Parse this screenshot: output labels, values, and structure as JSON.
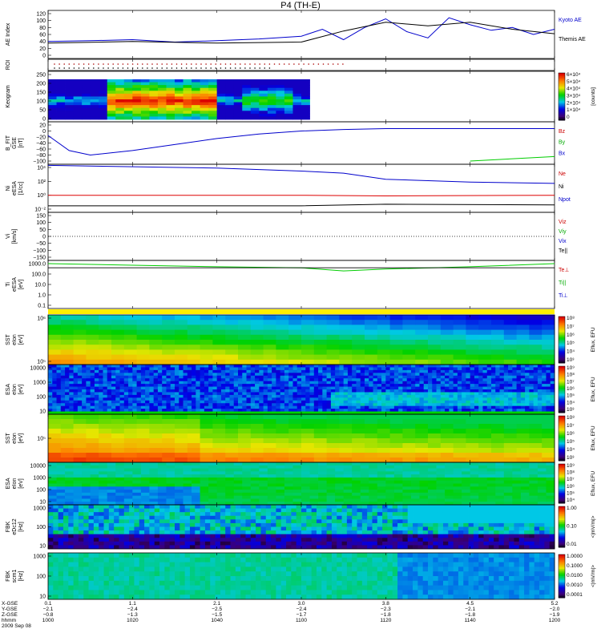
{
  "title": "P4 (TH-E)",
  "panels": [
    {
      "id": "ae",
      "ylabel": [
        "AE Index"
      ],
      "yticks": [
        "120",
        "100",
        "80",
        "60",
        "40",
        "20",
        "0"
      ],
      "right_labels": [
        {
          "text": "Kyoto AE",
          "color": "#0000cc"
        },
        {
          "text": "Themis AE",
          "color": "#000000"
        }
      ]
    },
    {
      "id": "roi",
      "ylabel": [
        "ROI"
      ],
      "yticks": [],
      "right_labels": []
    },
    {
      "id": "keogram",
      "ylabel": [
        "Keogram"
      ],
      "yticks": [
        "250",
        "200",
        "150",
        "100",
        "50",
        "0"
      ],
      "colorbar": {
        "ticks": [
          "6×10⁴",
          "5×10⁴",
          "4×10⁴",
          "3×10⁴",
          "2×10⁴",
          "1×10⁴",
          "0"
        ],
        "label": "[counts]"
      }
    },
    {
      "id": "bfield",
      "ylabel": [
        "B_FIT",
        "GSE",
        "[nT]"
      ],
      "yticks": [
        "20",
        "0",
        "−20",
        "−40",
        "−60",
        "−80",
        "−100"
      ],
      "right_labels": [
        {
          "text": "Bz",
          "color": "#cc0000"
        },
        {
          "text": "By",
          "color": "#00aa00"
        },
        {
          "text": "Bx",
          "color": "#0000cc"
        }
      ]
    },
    {
      "id": "density",
      "ylabel": [
        "Ni",
        "eESA",
        "[1/cc]"
      ],
      "yticks": [
        "10⁴",
        "10²",
        "10⁰",
        "10⁻²"
      ],
      "right_labels": [
        {
          "text": "Ne",
          "color": "#cc0000"
        },
        {
          "text": "Ni",
          "color": "#000000"
        },
        {
          "text": "Npot",
          "color": "#0000cc"
        }
      ]
    },
    {
      "id": "velocity",
      "ylabel": [
        "Vi",
        "[km/s]"
      ],
      "yticks": [
        "150",
        "100",
        "50",
        "0",
        "−50",
        "−100",
        "−150"
      ],
      "right_labels": [
        {
          "text": "Viz",
          "color": "#cc0000"
        },
        {
          "text": "Viy",
          "color": "#00aa00"
        },
        {
          "text": "Vix",
          "color": "#0000cc"
        },
        {
          "text": "Te||",
          "color": "#000000"
        }
      ]
    },
    {
      "id": "temperature",
      "ylabel": [
        "Ti",
        "eESA",
        "[eV]"
      ],
      "yticks": [
        "1000.0",
        "100.0",
        "10.0",
        "1.0",
        "0.1"
      ],
      "right_labels": [
        {
          "text": "Te⊥",
          "color": "#cc0000"
        },
        {
          "text": "Ti||",
          "color": "#00aa00"
        },
        {
          "text": "Ti⊥",
          "color": "#0000cc"
        }
      ]
    },
    {
      "id": "sst_e",
      "ylabel": [
        "SST",
        "eIon",
        "[eV]"
      ],
      "yticks": [
        "10⁶",
        "10⁵"
      ],
      "colorbar": {
        "ticks": [
          "10⁸",
          "10⁷",
          "10⁶",
          "10⁵",
          "10⁴",
          "10³"
        ],
        "label": "Eflux, EFU"
      }
    },
    {
      "id": "esa_e",
      "ylabel": [
        "ESA",
        "eIon",
        "[eV]"
      ],
      "yticks": [
        "10000",
        "1000",
        "100",
        "10"
      ],
      "colorbar": {
        "ticks": [
          "10⁹",
          "10⁸",
          "10⁷",
          "10⁶",
          "10⁵",
          "10⁴",
          "10³"
        ],
        "label": "Eflux, EFU"
      }
    },
    {
      "id": "sst_i",
      "ylabel": [
        "SST",
        "eIon",
        "[eV]"
      ],
      "yticks": [
        "10⁵"
      ],
      "colorbar": {
        "ticks": [
          "10⁸",
          "10⁷",
          "10⁶",
          "10⁵",
          "10⁴",
          "10³"
        ],
        "label": "Eflux, EFU"
      }
    },
    {
      "id": "esa_i",
      "ylabel": [
        "ESA",
        "eIon",
        "[eV]"
      ],
      "yticks": [
        "10000",
        "1000",
        "100",
        "10"
      ],
      "colorbar": {
        "ticks": [
          "10⁹",
          "10⁸",
          "10⁷",
          "10⁶",
          "10⁵",
          "10⁴"
        ],
        "label": "Eflux, EFU"
      }
    },
    {
      "id": "fbk_e12",
      "ylabel": [
        "FBK",
        "eDc12",
        "[Hz]"
      ],
      "yticks": [
        "1000",
        "100",
        "10"
      ],
      "colorbar": {
        "ticks": [
          "1.00",
          "0.10",
          "0.01"
        ],
        "label": "<|mV/m|>"
      }
    },
    {
      "id": "fbk_scm",
      "ylabel": [
        "FBK",
        "scm1",
        "[Hz]"
      ],
      "yticks": [
        "1000",
        "100",
        "10"
      ],
      "colorbar": {
        "ticks": [
          "1.0000",
          "0.1000",
          "0.0100",
          "0.0010",
          "0.0001"
        ],
        "label": "<|mV/m|>"
      }
    }
  ],
  "xaxis": {
    "row_labels": [
      "X-GSE",
      "Y-GSE",
      "Z-GSE",
      "hhmm",
      "2009 Sep 08"
    ],
    "columns": [
      [
        "0.1",
        "−2.1",
        "−0.8",
        "1000"
      ],
      [
        "1.1",
        "−2.4",
        "−1.3",
        "1020"
      ],
      [
        "2.1",
        "−2.5",
        "−1.5",
        "1040"
      ],
      [
        "3.0",
        "−2.4",
        "−1.7",
        "1100"
      ],
      [
        "3.8",
        "−2.3",
        "−1.8",
        "1120"
      ],
      [
        "4.5",
        "−2.1",
        "−1.8",
        "1140"
      ],
      [
        "5.2",
        "−2.0",
        "−1.9",
        "1200"
      ]
    ]
  },
  "colors": {
    "blue": "#0000cc",
    "green": "#00cc00",
    "red": "#dd0000",
    "black": "#000000"
  },
  "chart_data": [
    {
      "type": "line",
      "panel": "AE Index",
      "x_units": "hhmm",
      "xlim": [
        "1000",
        "1200"
      ],
      "ylim": [
        0,
        120
      ],
      "series": [
        {
          "name": "Kyoto AE",
          "x": [
            "1000",
            "1010",
            "1020",
            "1030",
            "1040",
            "1050",
            "1100",
            "1105",
            "1110",
            "1115",
            "1120",
            "1125",
            "1130",
            "1135",
            "1140",
            "1145",
            "1150",
            "1155",
            "1200"
          ],
          "values": [
            40,
            42,
            45,
            38,
            42,
            47,
            55,
            75,
            45,
            80,
            105,
            68,
            50,
            108,
            88,
            72,
            80,
            60,
            75
          ]
        },
        {
          "name": "Themis AE",
          "x": [
            "1000",
            "1020",
            "1040",
            "1100",
            "1110",
            "1120",
            "1130",
            "1140",
            "1150",
            "1200"
          ],
          "values": [
            35,
            40,
            35,
            38,
            70,
            95,
            85,
            95,
            75,
            62
          ]
        }
      ]
    },
    {
      "type": "line",
      "panel": "B_FIT GSE [nT]",
      "x_units": "hhmm",
      "ylim": [
        -100,
        20
      ],
      "series": [
        {
          "name": "Bx",
          "x": [
            "1000",
            "1005",
            "1010",
            "1020",
            "1030",
            "1040",
            "1050",
            "1100",
            "1110",
            "1120",
            "1140",
            "1200"
          ],
          "values": [
            -15,
            -65,
            -80,
            -65,
            -45,
            -25,
            -10,
            0,
            5,
            8,
            8,
            8
          ]
        },
        {
          "name": "By",
          "x": [
            "1140",
            "1200"
          ],
          "values": [
            -100,
            -85
          ]
        }
      ]
    },
    {
      "type": "line",
      "panel": "Ni eESA [1/cc]",
      "x_units": "hhmm",
      "yscale": "log",
      "series": [
        {
          "name": "Ni",
          "x": [
            "1000",
            "1040",
            "1100",
            "1110",
            "1120",
            "1140",
            "1200"
          ],
          "values": [
            20000,
            8000,
            3000,
            1500,
            200,
            80,
            50
          ]
        },
        {
          "name": "Ne",
          "x": [
            "1000",
            "1100",
            "1120",
            "1200"
          ],
          "values": [
            1,
            1,
            0.8,
            1
          ]
        },
        {
          "name": "Npot",
          "x": [
            "1000",
            "1100",
            "1120",
            "1200"
          ],
          "values": [
            0.03,
            0.03,
            0.05,
            0.04
          ]
        }
      ]
    },
    {
      "type": "line",
      "panel": "Ti eESA [eV]",
      "x_units": "hhmm",
      "yscale": "log",
      "series": [
        {
          "name": "Ti||",
          "x": [
            "1000",
            "1020",
            "1040",
            "1100",
            "1110",
            "1120",
            "1140",
            "1200"
          ],
          "values": [
            1000,
            700,
            500,
            400,
            200,
            300,
            500,
            1000
          ]
        }
      ]
    },
    {
      "type": "heatmap",
      "panel": "Keogram",
      "x_units": "hhmm",
      "ylim": [
        0,
        250
      ],
      "note": "bright aurora region ~1000–1030 hhmm"
    },
    {
      "type": "heatmap",
      "panel": "SST eIon",
      "yscale": "log"
    },
    {
      "type": "heatmap",
      "panel": "ESA eIon",
      "yscale": "log"
    },
    {
      "type": "heatmap",
      "panel": "FBK eDc12",
      "yscale": "log"
    },
    {
      "type": "heatmap",
      "panel": "FBK scm1",
      "yscale": "log"
    }
  ]
}
